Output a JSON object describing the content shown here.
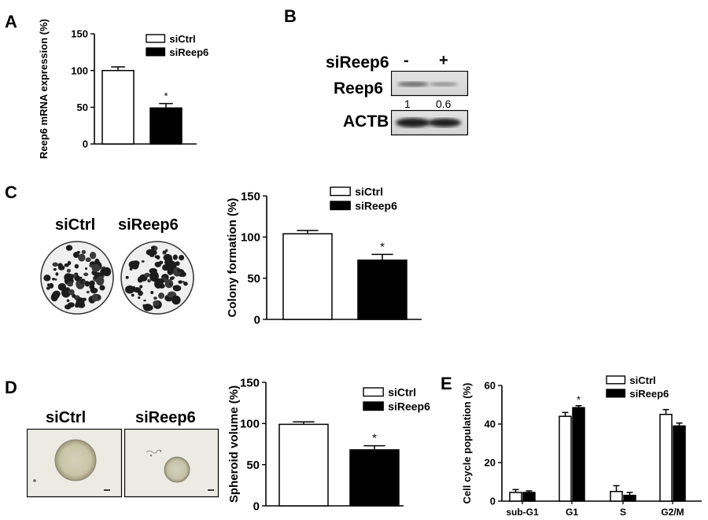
{
  "panels": {
    "a": "A",
    "b": "B",
    "c": "C",
    "d": "D",
    "e": "E"
  },
  "chart_data": [
    {
      "id": "A",
      "type": "bar",
      "categories": [
        "siCtrl",
        "siReep6"
      ],
      "values": [
        100,
        49
      ],
      "errors": [
        5,
        6
      ],
      "ylabel": "Reep6 mRNA expression (%)",
      "ylim": [
        0,
        150
      ],
      "yticks": [
        0,
        50,
        100,
        150
      ],
      "legend": [
        "siCtrl",
        "siReep6"
      ],
      "legend_position": "top-right",
      "significance": [
        "",
        "*"
      ],
      "grid": false
    },
    {
      "id": "C",
      "type": "bar",
      "categories": [
        "siCtrl",
        "siReep6"
      ],
      "values": [
        104,
        72
      ],
      "errors": [
        4,
        7
      ],
      "ylabel": "Colony formation (%)",
      "ylim": [
        0,
        150
      ],
      "yticks": [
        0,
        50,
        100,
        150
      ],
      "legend": [
        "siCtrl",
        "siReep6"
      ],
      "legend_position": "top-right",
      "significance": [
        "",
        "*"
      ],
      "grid": false
    },
    {
      "id": "D",
      "type": "bar",
      "categories": [
        "siCtrl",
        "siReep6"
      ],
      "values": [
        99,
        68
      ],
      "errors": [
        3,
        5
      ],
      "ylabel": "Spheroid volume  (%)",
      "ylim": [
        0,
        150
      ],
      "yticks": [
        0,
        50,
        100,
        150
      ],
      "legend": [
        "siCtrl",
        "siReep6"
      ],
      "legend_position": "top-right",
      "significance": [
        "",
        "*"
      ],
      "grid": false
    },
    {
      "id": "E",
      "type": "bar",
      "categories": [
        "sub-G1",
        "G1",
        "S",
        "G2/M"
      ],
      "series": [
        {
          "name": "siCtrl",
          "values": [
            4.5,
            44,
            5,
            45
          ],
          "errors": [
            1.5,
            2,
            3,
            2.5
          ]
        },
        {
          "name": "siReep6",
          "values": [
            4.5,
            48.5,
            3,
            39
          ],
          "errors": [
            0.8,
            1,
            1.5,
            1.5
          ]
        }
      ],
      "ylabel": "Cell cycle population (%)",
      "ylim": [
        0,
        60
      ],
      "yticks": [
        0,
        20,
        40,
        60
      ],
      "legend_position": "top-right",
      "significance": [
        [
          "",
          ""
        ],
        [
          "",
          "*"
        ],
        [
          "",
          ""
        ],
        [
          "",
          ""
        ]
      ],
      "grid": false
    }
  ],
  "blot": {
    "condition_label": "siReep6",
    "lanes": [
      "-",
      "+"
    ],
    "rows": [
      {
        "label": "Reep6",
        "quant": [
          "1",
          "0.6"
        ]
      },
      {
        "label": "ACTB"
      }
    ]
  },
  "photos": {
    "colony": [
      "siCtrl",
      "siReep6"
    ],
    "spheroid": [
      "siCtrl",
      "siReep6"
    ]
  },
  "colors": {
    "ctrl_fill": "#ffffff",
    "treat_fill": "#000000"
  }
}
